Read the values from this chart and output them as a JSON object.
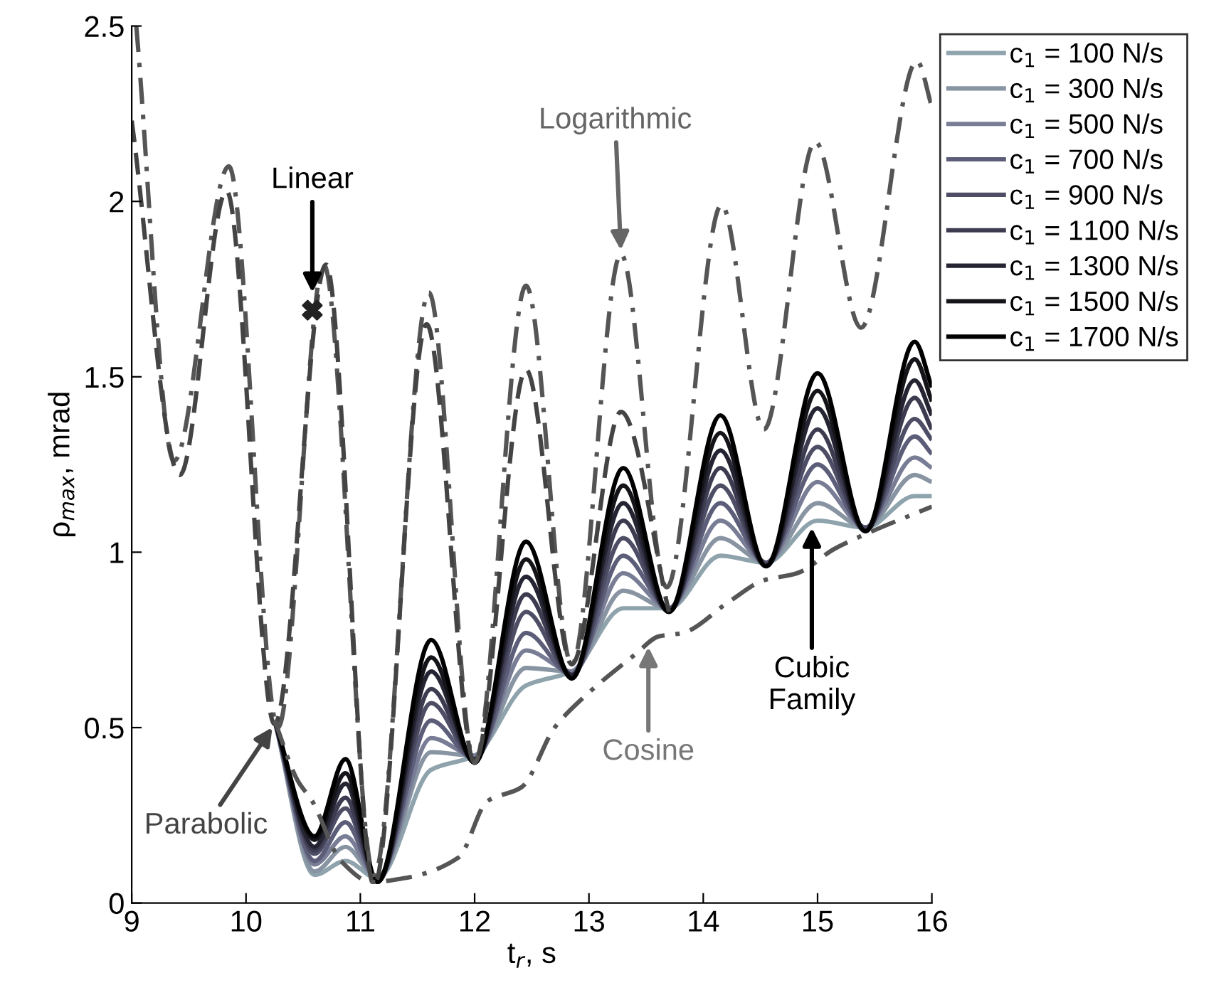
{
  "chart_data": {
    "type": "line",
    "xlabel": "t$_{r}$, s",
    "ylabel": "ρ$_{max}$, mrad",
    "xlim": [
      9,
      16
    ],
    "ylim": [
      0,
      2.5
    ],
    "xticks": [
      9,
      10,
      11,
      12,
      13,
      14,
      15,
      16
    ],
    "yticks": [
      0,
      0.5,
      1,
      1.5,
      2,
      2.5
    ],
    "grid": false,
    "legend": "top right",
    "marker": "none",
    "series": [
      {
        "name": "c$_{1}$ = 100 N/s",
        "color": "#8fa3ad",
        "line_style": "solid",
        "x": [
          10.25,
          10.6,
          10.87,
          11.15,
          11.62,
          12.0,
          12.45,
          12.85,
          13.3,
          13.7,
          14.15,
          14.55,
          15.0,
          15.42,
          15.85,
          16.0
        ],
        "values": [
          0.52,
          0.08,
          0.12,
          0.07,
          0.38,
          0.42,
          0.62,
          0.66,
          0.84,
          0.84,
          0.99,
          0.97,
          1.09,
          1.07,
          1.16,
          1.16
        ]
      },
      {
        "name": "c$_{1}$ = 300 N/s",
        "color": "#8894a2",
        "line_style": "solid",
        "x": [
          10.25,
          10.6,
          10.87,
          11.15,
          11.62,
          12.0,
          12.45,
          12.85,
          13.3,
          13.7,
          14.15,
          14.55,
          15.0,
          15.42,
          15.85,
          16.0
        ],
        "values": [
          0.52,
          0.09,
          0.16,
          0.07,
          0.43,
          0.42,
          0.67,
          0.66,
          0.89,
          0.84,
          1.04,
          0.97,
          1.14,
          1.07,
          1.22,
          1.2
        ]
      },
      {
        "name": "c$_{1}$ = 500 N/s",
        "color": "#787d95",
        "line_style": "solid",
        "x": [
          10.25,
          10.6,
          10.87,
          11.15,
          11.62,
          12.0,
          12.45,
          12.85,
          13.3,
          13.7,
          14.15,
          14.55,
          15.0,
          15.42,
          15.85,
          16.0
        ],
        "values": [
          0.52,
          0.11,
          0.19,
          0.07,
          0.47,
          0.42,
          0.72,
          0.66,
          0.94,
          0.84,
          1.09,
          0.97,
          1.2,
          1.07,
          1.27,
          1.24
        ]
      },
      {
        "name": "c$_{1}$ = 700 N/s",
        "color": "#5c5d78",
        "line_style": "solid",
        "x": [
          10.25,
          10.6,
          10.87,
          11.15,
          11.62,
          12.0,
          12.45,
          12.85,
          13.3,
          13.7,
          14.15,
          14.55,
          15.0,
          15.42,
          15.85,
          16.0
        ],
        "values": [
          0.52,
          0.12,
          0.23,
          0.07,
          0.52,
          0.41,
          0.77,
          0.65,
          0.99,
          0.84,
          1.14,
          0.97,
          1.25,
          1.07,
          1.33,
          1.28
        ]
      },
      {
        "name": "c$_{1}$ = 900 N/s",
        "color": "#4e4d66",
        "line_style": "solid",
        "x": [
          10.25,
          10.6,
          10.87,
          11.15,
          11.62,
          12.0,
          12.45,
          12.85,
          13.3,
          13.7,
          14.15,
          14.55,
          15.0,
          15.42,
          15.85,
          16.0
        ],
        "values": [
          0.52,
          0.14,
          0.27,
          0.07,
          0.57,
          0.41,
          0.83,
          0.65,
          1.04,
          0.84,
          1.19,
          0.97,
          1.3,
          1.07,
          1.38,
          1.32
        ]
      },
      {
        "name": "c$_{1}$ = 1100 N/s",
        "color": "#3c3b50",
        "line_style": "solid",
        "x": [
          10.25,
          10.6,
          10.87,
          11.15,
          11.62,
          12.0,
          12.45,
          12.85,
          13.3,
          13.7,
          14.15,
          14.55,
          15.0,
          15.42,
          15.85,
          16.0
        ],
        "values": [
          0.52,
          0.15,
          0.3,
          0.06,
          0.61,
          0.41,
          0.88,
          0.65,
          1.09,
          0.83,
          1.24,
          0.96,
          1.35,
          1.06,
          1.44,
          1.35
        ]
      },
      {
        "name": "c$_{1}$ = 1300 N/s",
        "color": "#252433",
        "line_style": "solid",
        "x": [
          10.25,
          10.6,
          10.87,
          11.15,
          11.62,
          12.0,
          12.45,
          12.85,
          13.3,
          13.7,
          14.15,
          14.55,
          15.0,
          15.42,
          15.85,
          16.0
        ],
        "values": [
          0.52,
          0.16,
          0.34,
          0.06,
          0.66,
          0.41,
          0.93,
          0.65,
          1.14,
          0.83,
          1.29,
          0.96,
          1.41,
          1.06,
          1.49,
          1.39
        ]
      },
      {
        "name": "c$_{1}$ = 1500 N/s",
        "color": "#141419",
        "line_style": "solid",
        "x": [
          10.25,
          10.6,
          10.87,
          11.15,
          11.62,
          12.0,
          12.45,
          12.85,
          13.3,
          13.7,
          14.15,
          14.55,
          15.0,
          15.42,
          15.85,
          16.0
        ],
        "values": [
          0.52,
          0.18,
          0.37,
          0.06,
          0.7,
          0.4,
          0.98,
          0.64,
          1.19,
          0.83,
          1.34,
          0.96,
          1.46,
          1.06,
          1.55,
          1.43
        ]
      },
      {
        "name": "c$_{1}$ = 1700 N/s",
        "color": "#000000",
        "line_style": "solid",
        "x": [
          10.25,
          10.6,
          10.87,
          11.15,
          11.62,
          12.0,
          12.45,
          12.85,
          13.3,
          13.7,
          14.15,
          14.55,
          15.0,
          15.42,
          15.85,
          16.0
        ],
        "values": [
          0.52,
          0.19,
          0.41,
          0.06,
          0.75,
          0.4,
          1.03,
          0.64,
          1.24,
          0.83,
          1.39,
          0.96,
          1.51,
          1.06,
          1.6,
          1.47
        ]
      },
      {
        "color": "#555555",
        "line_style": "dashdot",
        "x": [
          9.04,
          9.37,
          9.85,
          10.28,
          10.68,
          11.12,
          11.6,
          12.0,
          12.45,
          12.85,
          13.28,
          13.68,
          14.16,
          14.53,
          14.98,
          15.38,
          15.87,
          16.0
        ],
        "values": [
          2.5,
          1.26,
          2.1,
          0.5,
          1.82,
          0.08,
          1.74,
          0.4,
          1.76,
          0.68,
          1.85,
          0.9,
          1.99,
          1.35,
          2.17,
          1.64,
          2.4,
          2.27
        ]
      },
      {
        "color": "#444444",
        "line_style": "dashed",
        "x": [
          9.0,
          9.42,
          9.83,
          10.25,
          10.7,
          11.12,
          11.58,
          12.0,
          12.45,
          12.85,
          13.28,
          13.7
        ],
        "values": [
          2.23,
          1.22,
          2.03,
          0.51,
          1.82,
          0.05,
          1.65,
          0.4,
          1.52,
          0.68,
          1.4,
          0.83
        ]
      },
      {
        "color": "#555555",
        "line_style": "dashdot",
        "x": [
          10.25,
          10.45,
          10.58,
          10.83,
          11.1,
          11.37,
          11.86,
          12.11,
          12.41,
          12.7,
          12.9,
          13.41,
          13.61,
          13.82,
          14.23,
          14.53,
          14.82,
          15.15,
          15.48,
          15.85,
          16.0
        ],
        "values": [
          0.52,
          0.35,
          0.29,
          0.12,
          0.06,
          0.07,
          0.13,
          0.29,
          0.33,
          0.5,
          0.57,
          0.71,
          0.76,
          0.77,
          0.86,
          0.92,
          0.94,
          1.01,
          1.06,
          1.11,
          1.13
        ]
      },
      {
        "type": "scatter",
        "marker": "cross",
        "color": "#222222",
        "x": [
          10.58
        ],
        "values": [
          1.69
        ]
      }
    ],
    "annotations": [
      {
        "text": "Linear",
        "x": 10.58,
        "y": 1.74
      },
      {
        "text": "Logarithmic",
        "x": 13.28,
        "y": 1.85
      },
      {
        "text": "Parabolic",
        "x": 10.25,
        "y": 0.51
      },
      {
        "text": "Cosine",
        "x": 13.52,
        "y": 0.73
      },
      {
        "text": "Cubic\nFamily",
        "x": 14.95,
        "y": 1.07
      }
    ]
  }
}
